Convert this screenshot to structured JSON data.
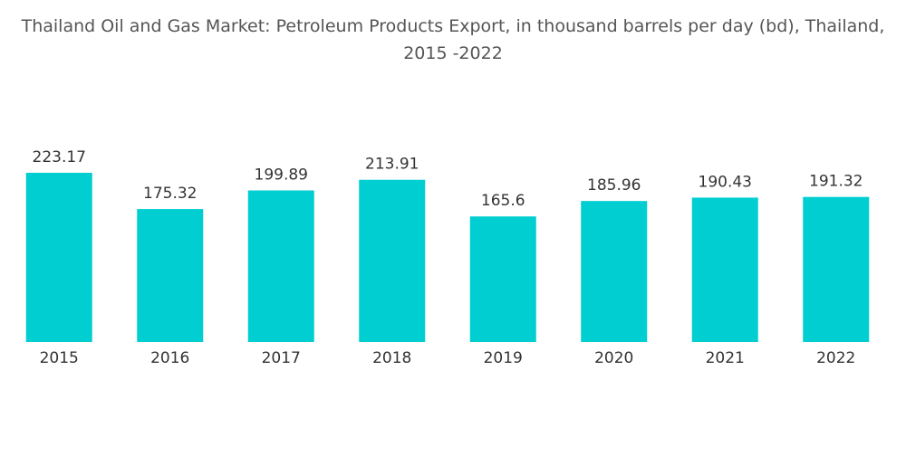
{
  "chart_data": {
    "type": "bar",
    "title": "Thailand Oil and Gas Market: Petroleum Products Export, in thousand barrels per day (bd), Thailand, 2015 -2022",
    "categories": [
      "2015",
      "2016",
      "2017",
      "2018",
      "2019",
      "2020",
      "2021",
      "2022"
    ],
    "values": [
      223.17,
      175.32,
      199.89,
      213.91,
      165.6,
      185.96,
      190.43,
      191.32
    ],
    "color": "#00ced1"
  }
}
